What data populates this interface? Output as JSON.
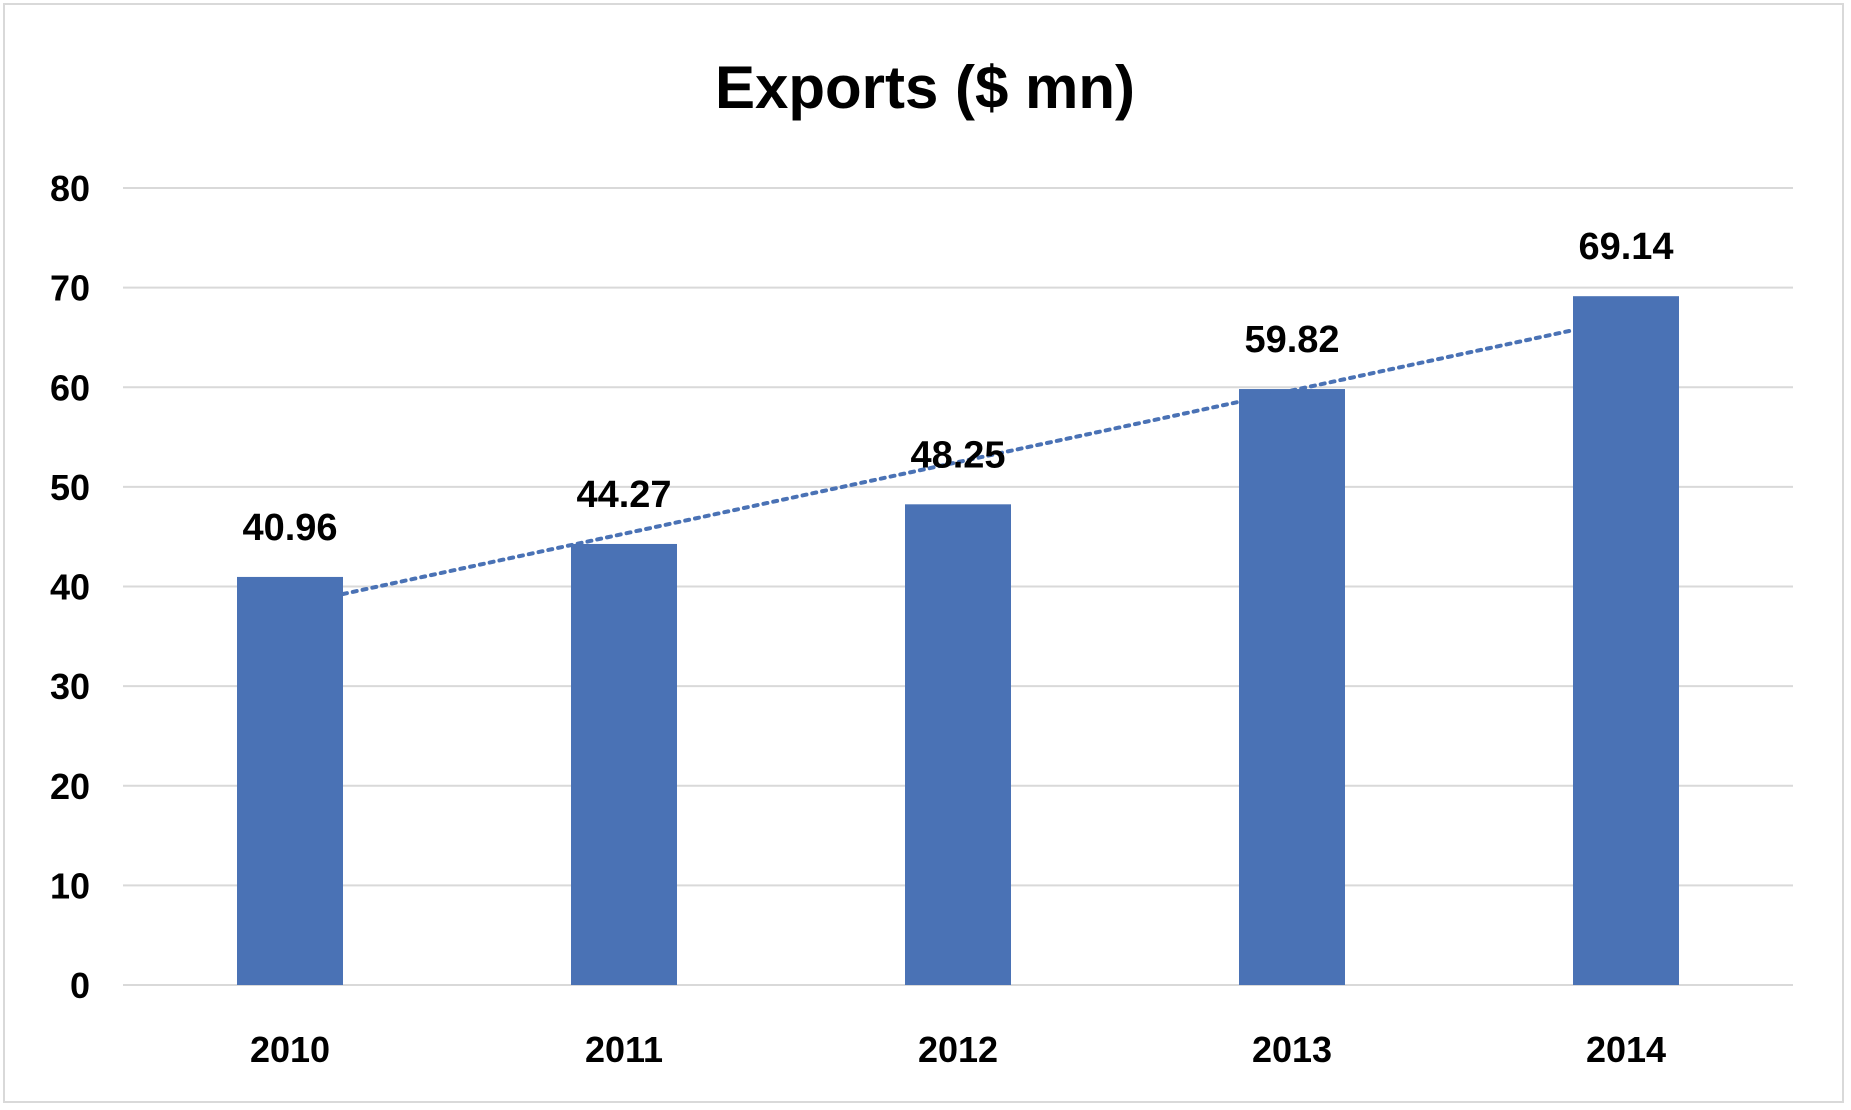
{
  "chart_data": {
    "type": "bar",
    "title": "Exports ($ mn)",
    "categories": [
      "2010",
      "2011",
      "2012",
      "2013",
      "2014"
    ],
    "values": [
      40.96,
      44.27,
      48.25,
      59.82,
      69.14
    ],
    "data_labels": [
      "40.96",
      "44.27",
      "48.25",
      "59.82",
      "69.14"
    ],
    "ylim": [
      0,
      80
    ],
    "yticks": [
      0,
      10,
      20,
      30,
      40,
      50,
      60,
      70,
      80
    ],
    "xlabel": "",
    "ylabel": "",
    "grid": true,
    "legend": "none",
    "bar_color": "#4a72b5",
    "trendline": {
      "type": "linear",
      "style": "dotted",
      "color": "#4a72b5"
    }
  }
}
